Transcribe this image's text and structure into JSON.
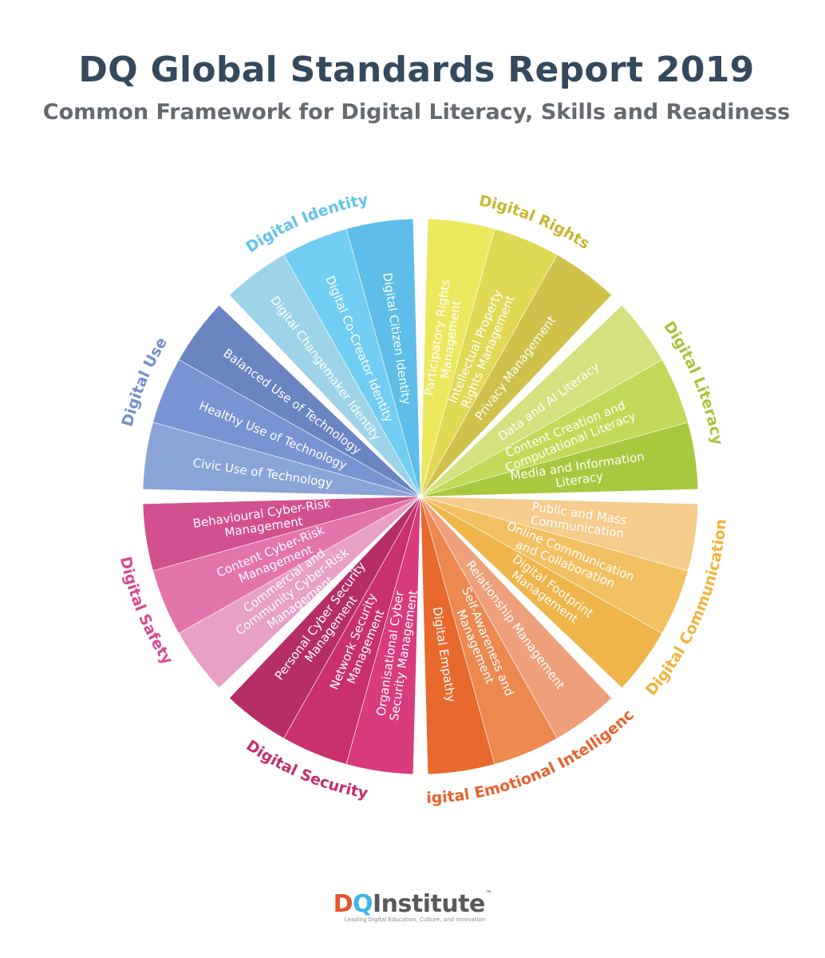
{
  "header": {
    "title": "DQ Global Standards Report 2019",
    "subtitle": "Common Framework for Digital Literacy, Skills and Readiness"
  },
  "wheel": {
    "areas": [
      {
        "name": "Digital Identity",
        "color": "#62c3ec",
        "segments": [
          {
            "lines": [
              "Digital Citizen Identity"
            ],
            "color": "#5ebde9"
          },
          {
            "lines": [
              "Digital Co-Creator Identity"
            ],
            "color": "#72cdf4"
          },
          {
            "lines": [
              "Digital Changemaker Identity"
            ],
            "color": "#9dd4e8"
          }
        ]
      },
      {
        "name": "Digital Use",
        "color": "#7590cc",
        "segments": [
          {
            "lines": [
              "Balanced Use of Technology"
            ],
            "color": "#6b84c2"
          },
          {
            "lines": [
              "Healthy Use of Technology"
            ],
            "color": "#7a93d2"
          },
          {
            "lines": [
              "Civic Use of Technology"
            ],
            "color": "#8aa4d8"
          }
        ]
      },
      {
        "name": "Digital Safety",
        "color": "#d8498f",
        "segments": [
          {
            "lines": [
              "Behavioural Cyber-Risk",
              "Management"
            ],
            "color": "#d2508f"
          },
          {
            "lines": [
              "Content Cyber-Risk",
              "Management"
            ],
            "color": "#e474ac"
          },
          {
            "lines": [
              "Commercial and",
              "Community Cyber-Risk",
              "Management"
            ],
            "color": "#e8a0c6"
          }
        ]
      },
      {
        "name": "Digital Security",
        "color": "#c42e6a",
        "segments": [
          {
            "lines": [
              "Personal Cyber Security",
              "Management"
            ],
            "color": "#b52e67"
          },
          {
            "lines": [
              "Network Security",
              "Management"
            ],
            "color": "#c9306e"
          },
          {
            "lines": [
              "Organisational Cyber",
              "Security Management"
            ],
            "color": "#d83b7e"
          }
        ]
      },
      {
        "name": "Digital Emotional Intelligence",
        "color": "#e8622c",
        "segments": [
          {
            "lines": [
              "Digital Empathy"
            ],
            "color": "#e8692d"
          },
          {
            "lines": [
              "Self-Awareness and",
              "Management"
            ],
            "color": "#ec8850"
          },
          {
            "lines": [
              "Relationship Management"
            ],
            "color": "#eea07a"
          }
        ]
      },
      {
        "name": "Digital Communication",
        "color": "#f0b33a",
        "segments": [
          {
            "lines": [
              "Digital Footprint",
              "Management"
            ],
            "color": "#efb54b"
          },
          {
            "lines": [
              "Online Communication",
              "and Collaboration"
            ],
            "color": "#f3c062"
          },
          {
            "lines": [
              "Public and Mass",
              "Communication"
            ],
            "color": "#f5cc8c"
          }
        ]
      },
      {
        "name": "Digital Literacy",
        "color": "#a7c43a",
        "segments": [
          {
            "lines": [
              "Media and Information",
              "Literacy"
            ],
            "color": "#a8c83e"
          },
          {
            "lines": [
              "Content Creation and",
              "Computational Literacy"
            ],
            "color": "#c2da58"
          },
          {
            "lines": [
              "Data and AI Literacy"
            ],
            "color": "#d5e07e"
          }
        ]
      },
      {
        "name": "Digital Rights",
        "color": "#c9b634",
        "segments": [
          {
            "lines": [
              "Privacy Management"
            ],
            "color": "#cfc24a"
          },
          {
            "lines": [
              "Intellectual Property",
              "Rights Management"
            ],
            "color": "#dfd955"
          },
          {
            "lines": [
              "Participatory Rights",
              "Management"
            ],
            "color": "#ece95f"
          }
        ]
      }
    ]
  },
  "footer": {
    "logo_d": "D",
    "logo_q": "Q",
    "logo_rest": "Institute",
    "logo_tm": "™",
    "tagline": "Leading Digital Education, Culture, and Innovation"
  }
}
